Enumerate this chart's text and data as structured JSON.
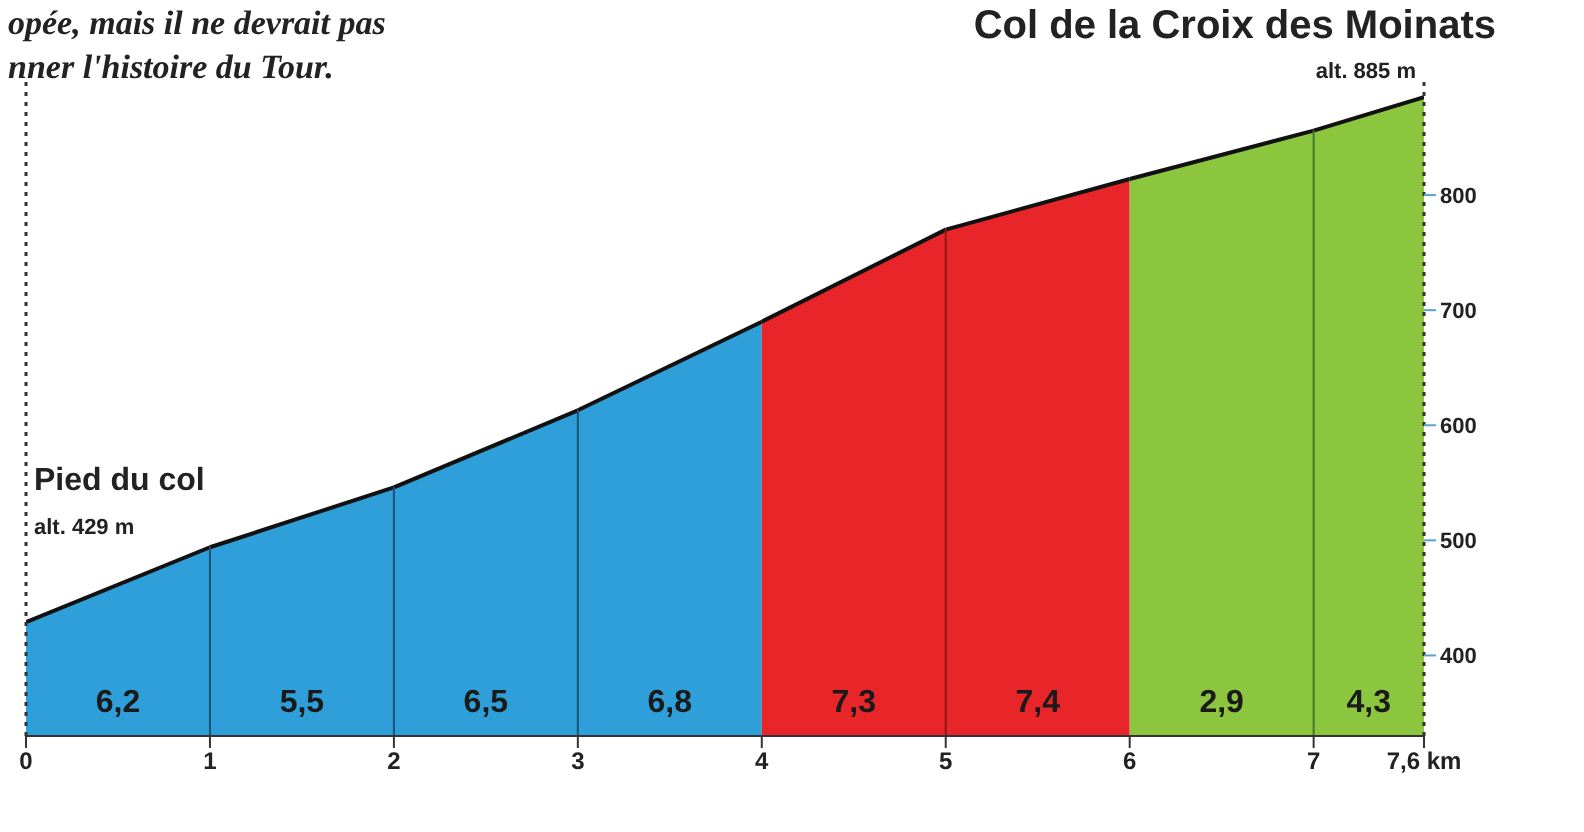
{
  "chart_data": {
    "type": "area",
    "title": "Col de la Croix des Moinats",
    "xlim": [
      0,
      7.6
    ],
    "xticks": [
      0,
      1,
      2,
      3,
      4,
      5,
      6,
      7,
      {
        "value": 7.6,
        "label": "7,6 km"
      }
    ],
    "ylim": [
      330,
      900
    ],
    "yticks": [
      400,
      500,
      600,
      700,
      800
    ],
    "series": [
      {
        "name": "6,2",
        "color": "#2e9fd8",
        "x": [
          0,
          1
        ],
        "values": [
          429,
          494
        ]
      },
      {
        "name": "5,5",
        "color": "#2e9fd8",
        "x": [
          1,
          2
        ],
        "values": [
          494,
          546
        ]
      },
      {
        "name": "6,5",
        "color": "#2e9fd8",
        "x": [
          2,
          3
        ],
        "values": [
          546,
          613
        ]
      },
      {
        "name": "6,8",
        "color": "#2e9fd8",
        "x": [
          3,
          4
        ],
        "values": [
          613,
          690
        ]
      },
      {
        "name": "7,3",
        "color": "#e8262a",
        "x": [
          4,
          5
        ],
        "values": [
          690,
          770
        ]
      },
      {
        "name": "7,4",
        "color": "#e8262a",
        "x": [
          5,
          6
        ],
        "values": [
          770,
          814
        ]
      },
      {
        "name": "2,9",
        "color": "#8cc63f",
        "x": [
          6,
          7
        ],
        "values": [
          814,
          856
        ]
      },
      {
        "name": "4,3",
        "color": "#8cc63f",
        "x": [
          7,
          7.6
        ],
        "values": [
          856,
          885
        ]
      }
    ],
    "ref_lines": [
      {
        "axis": "x",
        "value": 0,
        "line_style": "dotted",
        "color": "#333333"
      },
      {
        "axis": "x",
        "value": 1,
        "color": "#1f4f7a"
      },
      {
        "axis": "x",
        "value": 2,
        "color": "#1f4f7a"
      },
      {
        "axis": "x",
        "value": 3,
        "color": "#1f4f7a"
      },
      {
        "axis": "x",
        "value": 5,
        "color": "#8a1a1a"
      },
      {
        "axis": "x",
        "value": 7,
        "color": "#3a7a2a"
      },
      {
        "axis": "x",
        "value": 7.6,
        "line_style": "dotted",
        "color": "#333333"
      }
    ],
    "annotations": [
      "opée, mais il ne devrait pas",
      "nner l'histoire du Tour.",
      "Pied du col",
      "alt. 429 m",
      "alt. 885 m"
    ],
    "grid": false
  }
}
